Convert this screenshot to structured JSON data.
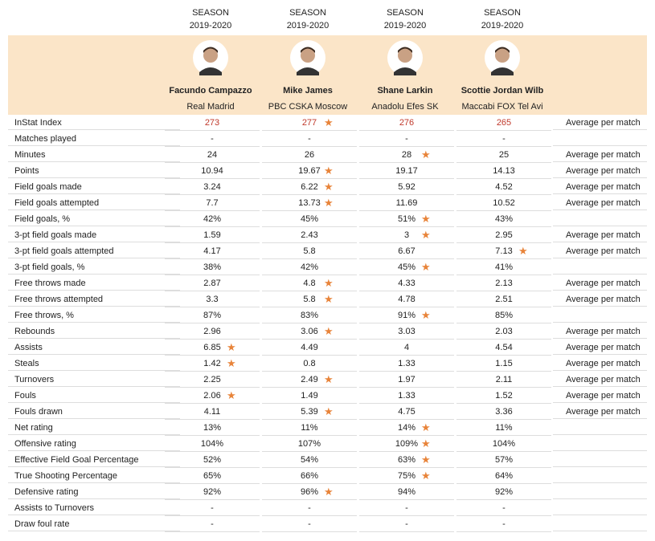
{
  "players": [
    {
      "season": "SEASON",
      "years": "2019-2020",
      "name": "Facundo Campazzo",
      "team": "Real Madrid"
    },
    {
      "season": "SEASON",
      "years": "2019-2020",
      "name": "Mike James",
      "team": "PBC CSKA Moscow"
    },
    {
      "season": "SEASON",
      "years": "2019-2020",
      "name": "Shane Larkin",
      "team": "Anadolu Efes SK"
    },
    {
      "season": "SEASON",
      "years": "2019-2020",
      "name": "Scottie Jordan Wilb",
      "team": "Maccabi FOX Tel Avi"
    }
  ],
  "rows": [
    {
      "label": "InStat Index",
      "values": [
        "273",
        "277",
        "276",
        "265"
      ],
      "best": [
        1
      ],
      "note": "Average per match",
      "highlight": true
    },
    {
      "label": "Matches played",
      "values": [
        "-",
        "-",
        "-",
        "-"
      ],
      "best": []
    },
    {
      "label": "Minutes",
      "values": [
        "24",
        "26",
        "28",
        "25"
      ],
      "best": [
        2
      ],
      "note": "Average per match"
    },
    {
      "label": "Points",
      "values": [
        "10.94",
        "19.67",
        "19.17",
        "14.13"
      ],
      "best": [
        1
      ],
      "note": "Average per match"
    },
    {
      "label": "Field goals made",
      "values": [
        "3.24",
        "6.22",
        "5.92",
        "4.52"
      ],
      "best": [
        1
      ],
      "note": "Average per match"
    },
    {
      "label": "Field goals attempted",
      "values": [
        "7.7",
        "13.73",
        "11.69",
        "10.52"
      ],
      "best": [
        1
      ],
      "note": "Average per match"
    },
    {
      "label": "Field goals, %",
      "values": [
        "42%",
        "45%",
        "51%",
        "43%"
      ],
      "best": [
        2
      ]
    },
    {
      "label": "3-pt field goals made",
      "values": [
        "1.59",
        "2.43",
        "3",
        "2.95"
      ],
      "best": [
        2
      ],
      "note": "Average per match"
    },
    {
      "label": "3-pt field goals attempted",
      "values": [
        "4.17",
        "5.8",
        "6.67",
        "7.13"
      ],
      "best": [
        3
      ],
      "note": "Average per match"
    },
    {
      "label": "3-pt field goals, %",
      "values": [
        "38%",
        "42%",
        "45%",
        "41%"
      ],
      "best": [
        2
      ]
    },
    {
      "label": "Free throws made",
      "values": [
        "2.87",
        "4.8",
        "4.33",
        "2.13"
      ],
      "best": [
        1
      ],
      "note": "Average per match"
    },
    {
      "label": "Free throws attempted",
      "values": [
        "3.3",
        "5.8",
        "4.78",
        "2.51"
      ],
      "best": [
        1
      ],
      "note": "Average per match"
    },
    {
      "label": "Free throws, %",
      "values": [
        "87%",
        "83%",
        "91%",
        "85%"
      ],
      "best": [
        2
      ]
    },
    {
      "label": "Rebounds",
      "values": [
        "2.96",
        "3.06",
        "3.03",
        "2.03"
      ],
      "best": [
        1
      ],
      "note": "Average per match"
    },
    {
      "label": "Assists",
      "values": [
        "6.85",
        "4.49",
        "4",
        "4.54"
      ],
      "best": [
        0
      ],
      "note": "Average per match"
    },
    {
      "label": "Steals",
      "values": [
        "1.42",
        "0.8",
        "1.33",
        "1.15"
      ],
      "best": [
        0
      ],
      "note": "Average per match"
    },
    {
      "label": "Turnovers",
      "values": [
        "2.25",
        "2.49",
        "1.97",
        "2.11"
      ],
      "best": [
        1
      ],
      "note": "Average per match"
    },
    {
      "label": "Fouls",
      "values": [
        "2.06",
        "1.49",
        "1.33",
        "1.52"
      ],
      "best": [
        0
      ],
      "note": "Average per match"
    },
    {
      "label": "Fouls drawn",
      "values": [
        "4.11",
        "5.39",
        "4.75",
        "3.36"
      ],
      "best": [
        1
      ],
      "note": "Average per match"
    },
    {
      "label": "Net rating",
      "values": [
        "13%",
        "11%",
        "14%",
        "11%"
      ],
      "best": [
        2
      ]
    },
    {
      "label": "Offensive rating",
      "values": [
        "104%",
        "107%",
        "109%",
        "104%"
      ],
      "best": [
        2
      ]
    },
    {
      "label": "Effective Field Goal Percentage",
      "values": [
        "52%",
        "54%",
        "63%",
        "57%"
      ],
      "best": [
        2
      ]
    },
    {
      "label": "True Shooting Percentage",
      "values": [
        "65%",
        "66%",
        "75%",
        "64%"
      ],
      "best": [
        2
      ]
    },
    {
      "label": "Defensive rating",
      "values": [
        "92%",
        "96%",
        "94%",
        "92%"
      ],
      "best": [
        1
      ]
    },
    {
      "label": "Assists to Turnovers",
      "values": [
        "-",
        "-",
        "-",
        "-"
      ],
      "best": []
    },
    {
      "label": "Draw foul rate",
      "values": [
        "-",
        "-",
        "-",
        "-"
      ],
      "best": []
    }
  ]
}
